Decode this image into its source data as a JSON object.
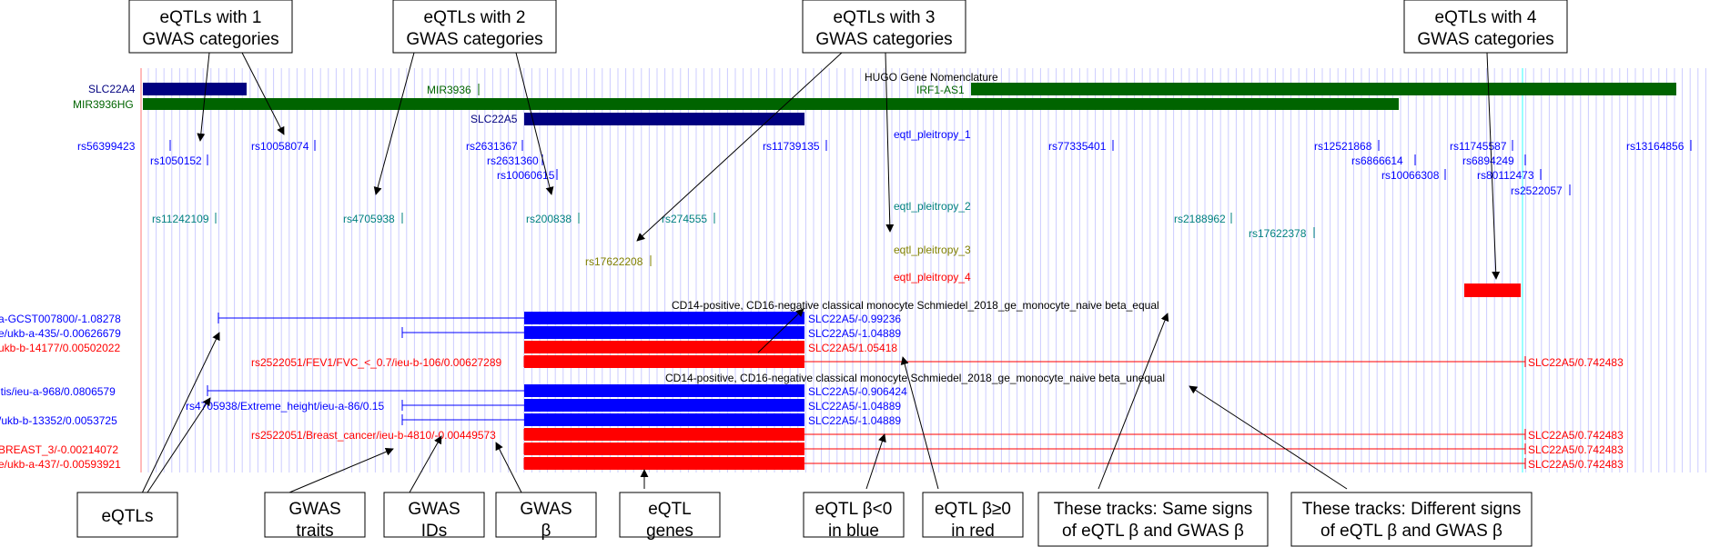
{
  "callouts_top": [
    {
      "line1": "eQTLs with 1",
      "line2": "GWAS categories"
    },
    {
      "line1": "eQTLs with 2",
      "line2": "GWAS categories"
    },
    {
      "line1": "eQTLs with 3",
      "line2": "GWAS categories"
    },
    {
      "line1": "eQTLs with 4",
      "line2": "GWAS categories"
    }
  ],
  "callouts_bottom": [
    {
      "line1": "eQTLs",
      "line2": ""
    },
    {
      "line1": "GWAS",
      "line2": "traits"
    },
    {
      "line1": "GWAS",
      "line2": "IDs"
    },
    {
      "line1": "GWAS",
      "line2": "β"
    },
    {
      "line1": "eQTL",
      "line2": "genes"
    },
    {
      "line1": "eQTL β<0",
      "line2": "in blue"
    },
    {
      "line1": "eQTL β≥0",
      "line2": "in red"
    },
    {
      "line1": "These tracks: Same signs",
      "line2": "of eQTL β and GWAS β"
    },
    {
      "line1": "These tracks: Different signs",
      "line2": "of eQTL β and GWAS β"
    }
  ],
  "genes": {
    "hugo_header": "HUGO Gene Nomenclature",
    "slc22a4": "SLC22A4",
    "mir3936hg": "MIR3936HG",
    "mir3936": "MIR3936",
    "slc22a5": "SLC22A5",
    "irf1_as1": "IRF1-AS1"
  },
  "snp_labels": [
    "rs56399423",
    "rs1050152",
    "rs10058074",
    "rs2631367",
    "rs2631360",
    "rs10060615",
    "rs11739135",
    "eqtl_pleitropy_1",
    "rs77335401",
    "rs12521868",
    "rs6866614",
    "rs11745587",
    "rs6894249",
    "rs10066308",
    "rs80112473",
    "rs2522057",
    "rs13164856",
    "rs11242109",
    "rs4705938",
    "rs200838",
    "rs274555",
    "eqtl_pleitropy_2",
    "rs2188962",
    "rs17622378",
    "eqtl_pleitropy_3",
    "rs17622208",
    "eqtl_pleitropy_4",
    "rs2522051"
  ],
  "track_titles": [
    "CD14-positive, CD16-negative classical monocyte Schmiedel_2018_ge_monocyte_naive beta_equal",
    "CD14-positive, CD16-negative classical monocyte Schmiedel_2018_ge_monocyte_naive beta_unequal"
  ],
  "gwas_labels": [
    "a-GCST007800/-1.08278",
    "e/ukb-a-435/-0.00626679",
    "ukb-b-14177/0.00502022",
    "rs2522051/FEV1/FVC_<_0.7/ieu-b-106/0.00627289",
    "itis/ieu-a-968/0.0806579",
    "rs4705938/Extreme_height/ieu-a-86/0.15",
    "/ukb-b-13352/0.0053725",
    "rs2522051/Breast_cancer/ieu-b-4810/-0.00449573",
    "BREAST_3/-0.00214072",
    "e/ukb-a-437/-0.00593921"
  ],
  "eqtl_labels": [
    "SLC22A5/-0.99236",
    "SLC22A5/-1.04889",
    "SLC22A5/1.05418",
    "SLC22A5/0.742483",
    "SLC22A5/-0.906424",
    "SLC22A5/-1.04889",
    "SLC22A5/-1.04889",
    "SLC22A5/0.742483",
    "SLC22A5/0.742483",
    "SLC22A5/0.742483"
  ],
  "colors": {
    "blue": "#0000ff",
    "red": "#ff0000",
    "navy": "#000080",
    "green": "#006400",
    "teal": "#008080",
    "olive": "#808000",
    "grid": "#ccccff",
    "cyan": "#aaffff"
  }
}
